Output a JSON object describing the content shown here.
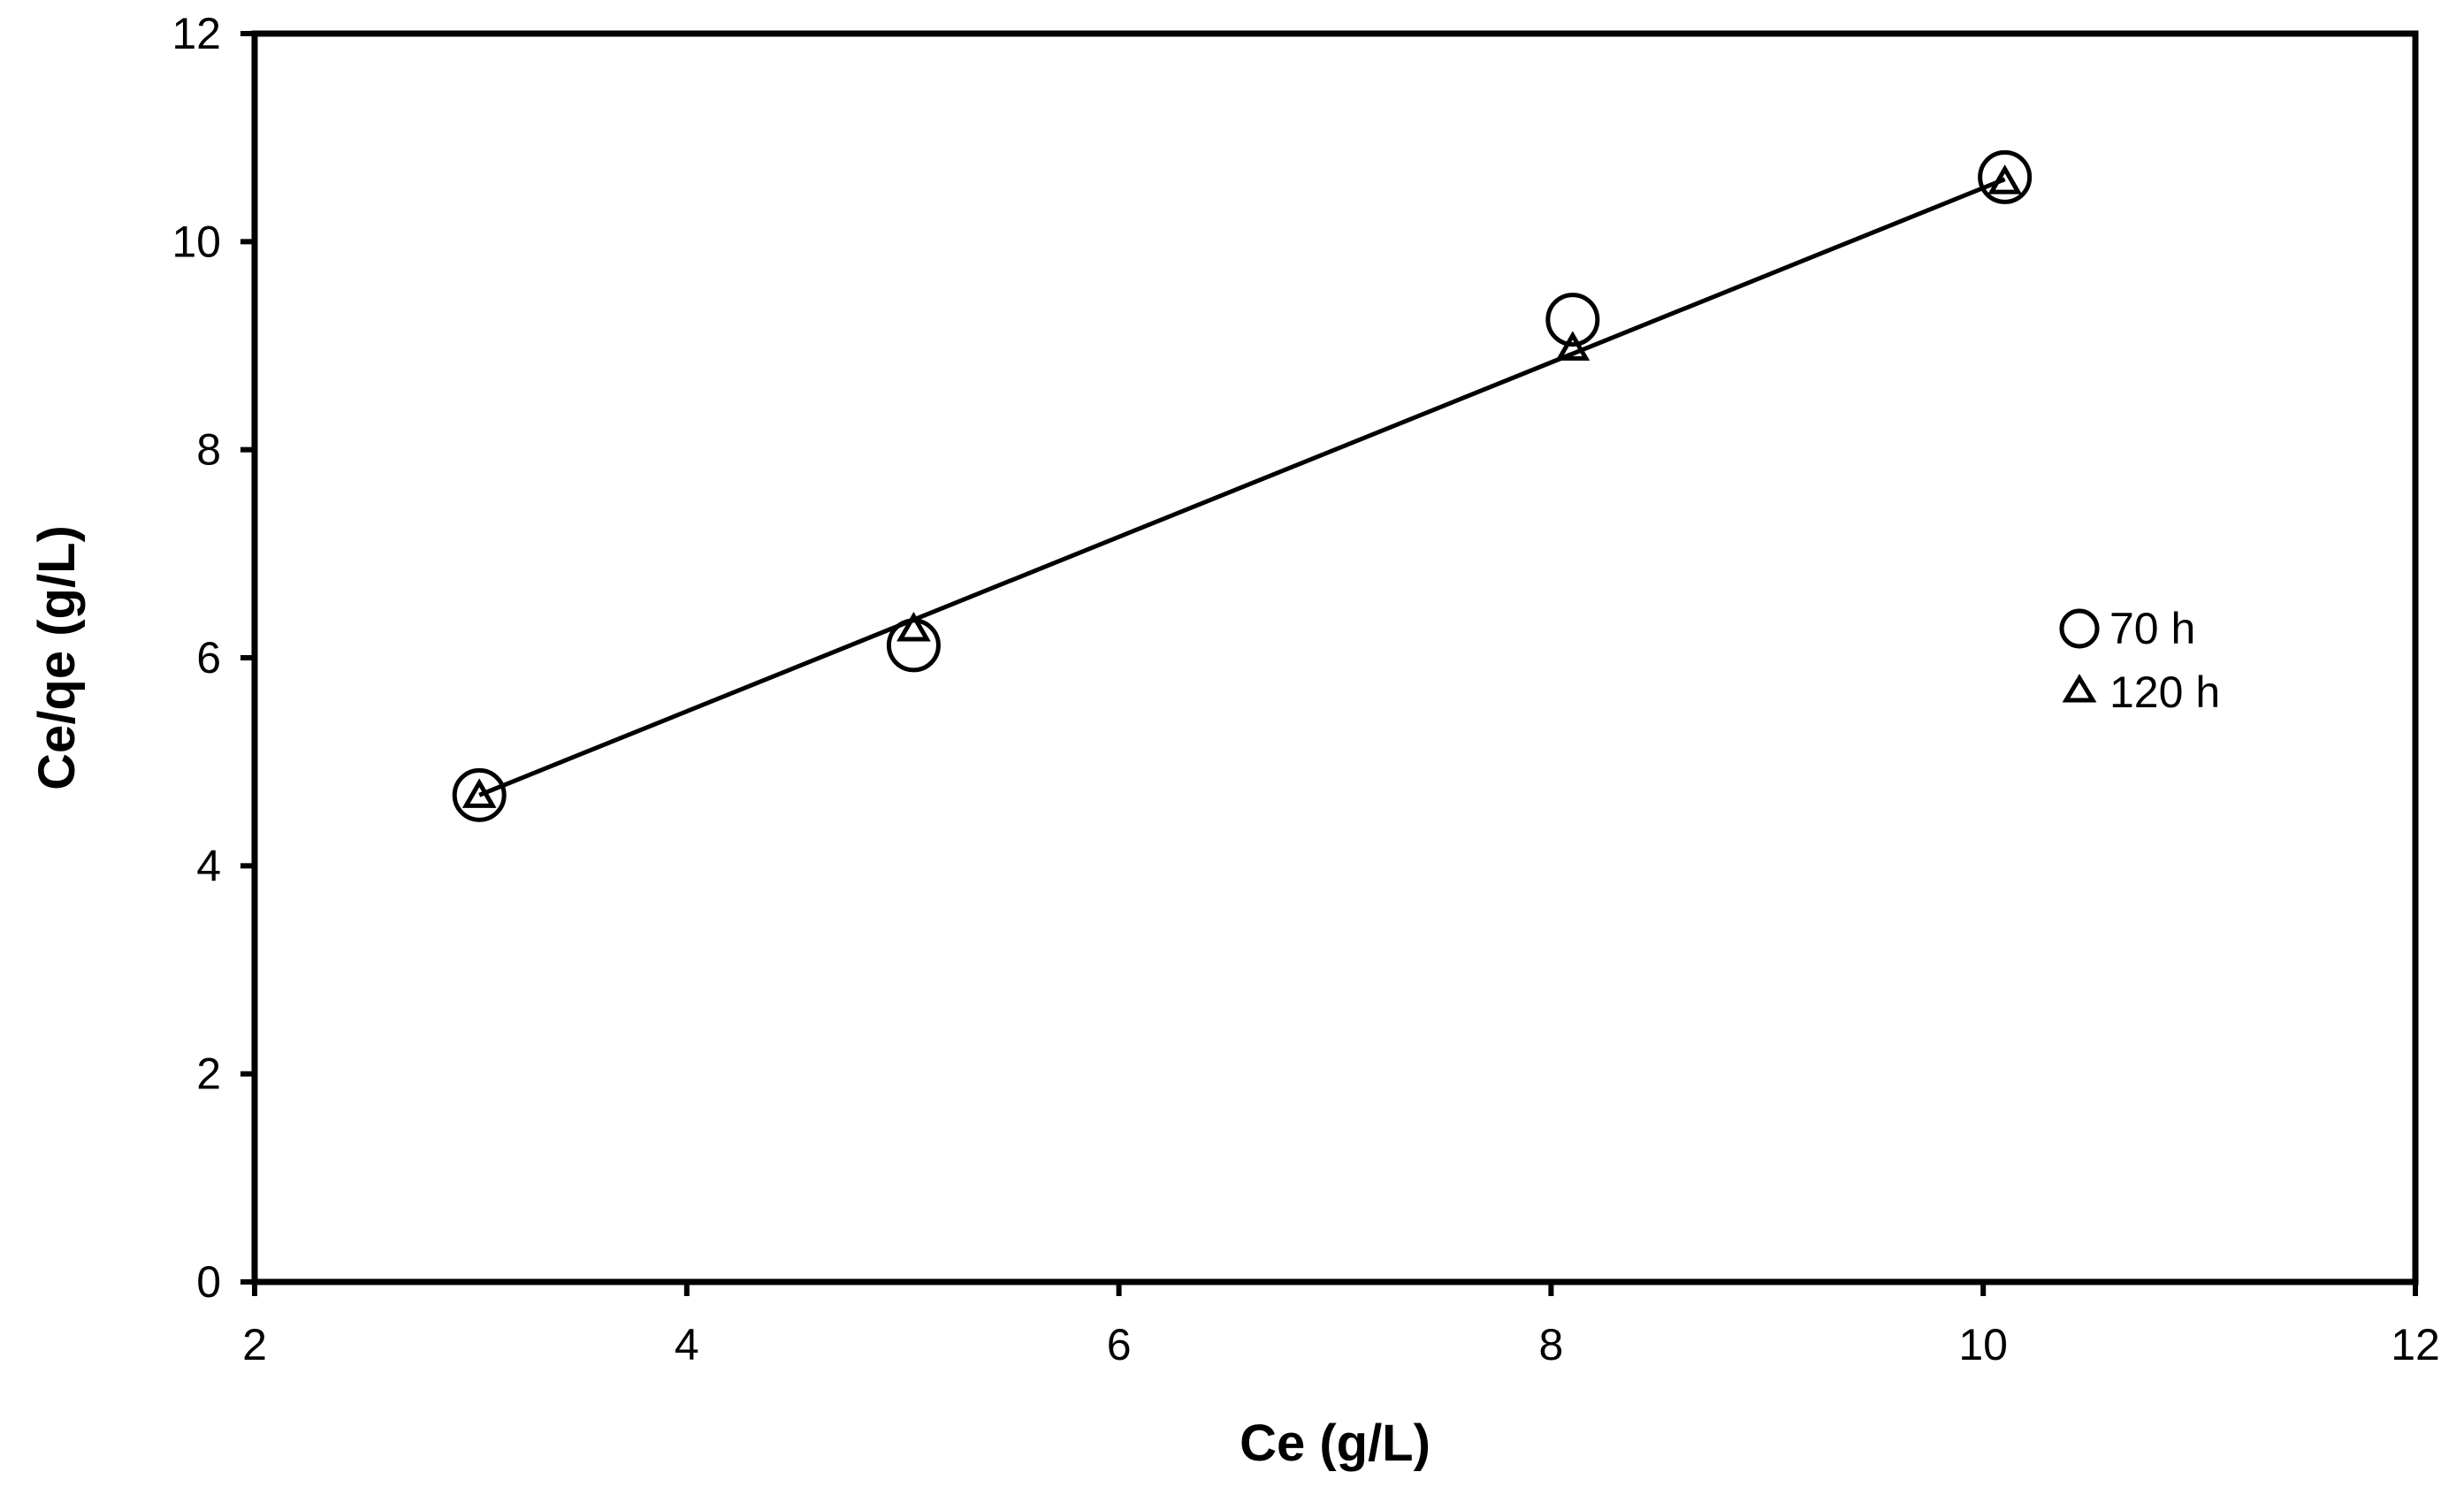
{
  "chart_data": {
    "type": "scatter",
    "xlabel": "Ce (g/L)",
    "ylabel": "Ce/qe (g/L)",
    "xlim": [
      2,
      12
    ],
    "ylim": [
      0,
      12
    ],
    "x_ticks": [
      "2",
      "4",
      "6",
      "8",
      "10",
      "12"
    ],
    "y_ticks": [
      "0",
      "2",
      "4",
      "6",
      "8",
      "10",
      "12"
    ],
    "legend_position": "right",
    "grid": false,
    "series": [
      {
        "name": "70 h",
        "marker": "circle",
        "points": [
          [
            3.04,
            4.68
          ],
          [
            5.05,
            6.12
          ],
          [
            8.1,
            9.25
          ],
          [
            10.1,
            10.62
          ]
        ]
      },
      {
        "name": "120 h",
        "marker": "triangle",
        "points": [
          [
            3.04,
            4.68
          ],
          [
            5.05,
            6.28
          ],
          [
            8.1,
            8.98
          ],
          [
            10.1,
            10.58
          ]
        ]
      }
    ],
    "trendline": {
      "points": [
        [
          3.04,
          4.68
        ],
        [
          10.1,
          10.6
        ]
      ]
    },
    "colors": {
      "axis": "#000000",
      "marker": "#000000",
      "background": "#ffffff"
    }
  }
}
